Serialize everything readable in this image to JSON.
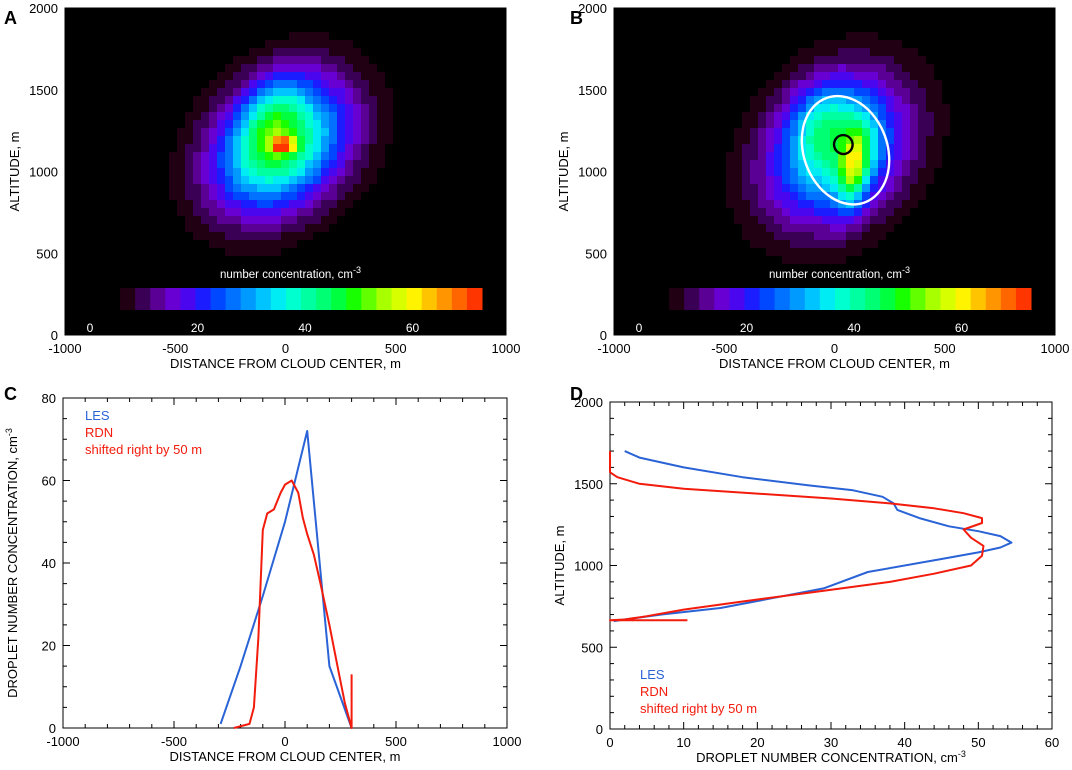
{
  "colors": {
    "les": "#2a63d6",
    "rdn": "#f21b0c",
    "heat_bg": "#000000",
    "contour_outer": "#ffffff",
    "contour_inner": "#000000"
  },
  "colormap": [
    "#000000",
    "#220014",
    "#3a0055",
    "#5a0094",
    "#6800d4",
    "#4a06ee",
    "#1b1cff",
    "#0048ff",
    "#0072ff",
    "#009aff",
    "#00c4ff",
    "#00ecf4",
    "#00ffcf",
    "#00ffa0",
    "#00ff73",
    "#00ff3e",
    "#18ff00",
    "#62ff00",
    "#a8ff00",
    "#d8ff00",
    "#fff300",
    "#ffc400",
    "#ff9500",
    "#ff6600",
    "#ff3500"
  ],
  "chart_data": [
    {
      "panel": "A",
      "type": "heatmap",
      "xlabel": "DISTANCE FROM CLOUD CENTER, m",
      "ylabel": "ALTITUDE, m",
      "xlim": [
        -1000,
        1000
      ],
      "ylim": [
        0,
        2000
      ],
      "xticks": [
        -1000,
        -500,
        0,
        500,
        1000
      ],
      "yticks": [
        0,
        500,
        1000,
        1500,
        2000
      ],
      "colorbar": {
        "title": "number concentration, cm",
        "title_sup": "-3",
        "ticks": [
          0,
          20,
          40,
          60
        ],
        "range": [
          0,
          72
        ]
      },
      "field": {
        "background": 0,
        "blobs": [
          {
            "cx": -20,
            "cy": 1160,
            "sx": 200,
            "sy": 300,
            "rot": -22,
            "peak": 44
          },
          {
            "cx": -60,
            "cy": 1330,
            "sx": 90,
            "sy": 190,
            "rot": -10,
            "peak": 12
          },
          {
            "cx": -10,
            "cy": 1160,
            "sx": 34,
            "sy": 30,
            "rot": 0,
            "peak": 34
          }
        ]
      }
    },
    {
      "panel": "B",
      "type": "heatmap",
      "xlabel": "DISTANCE FROM CLOUD CENTER, m",
      "ylabel": "ALTITUDE, m",
      "xlim": [
        -1000,
        1000
      ],
      "ylim": [
        0,
        2000
      ],
      "xticks": [
        -1000,
        -500,
        0,
        500,
        1000
      ],
      "yticks": [
        0,
        500,
        1000,
        1500,
        2000
      ],
      "colorbar": {
        "title": "number concentration, cm",
        "title_sup": "-3",
        "ticks": [
          0,
          20,
          40,
          60
        ],
        "range": [
          0,
          72
        ]
      },
      "field": {
        "background": 0,
        "blobs": [
          {
            "cx": 10,
            "cy": 1130,
            "sx": 210,
            "sy": 320,
            "rot": -18,
            "peak": 36
          },
          {
            "cx": -50,
            "cy": 1320,
            "sx": 100,
            "sy": 180,
            "rot": -10,
            "peak": 12
          },
          {
            "cx": 90,
            "cy": 1030,
            "sx": 48,
            "sy": 170,
            "rot": -6,
            "peak": 28
          }
        ]
      },
      "contours": [
        {
          "name": "outer",
          "cx": 50,
          "cy": 1130,
          "rx": 190,
          "ry": 340,
          "rot": -20
        },
        {
          "name": "inner",
          "cx": 40,
          "cy": 1165,
          "rx": 42,
          "ry": 58,
          "rot": -15
        }
      ]
    },
    {
      "panel": "C",
      "type": "line",
      "xlabel": "DISTANCE FROM CLOUD CENTER, m",
      "ylabel": "DROPLET NUMBER CONCENTRATION, cm",
      "ylabel_sup": "-3",
      "xlim": [
        -1000,
        1000
      ],
      "ylim": [
        0,
        80
      ],
      "xticks": [
        -1000,
        -500,
        0,
        500,
        1000
      ],
      "yticks": [
        0,
        20,
        40,
        60,
        80
      ],
      "legend": [
        "LES",
        "RDN",
        "shifted right by 50 m"
      ],
      "series": [
        {
          "name": "LES",
          "color_key": "les",
          "x": [
            -290,
            -200,
            -100,
            0,
            100,
            200,
            300
          ],
          "y": [
            1,
            15,
            32,
            50,
            72,
            15,
            0
          ]
        },
        {
          "name": "RDN",
          "color_key": "rdn",
          "x": [
            -230,
            -160,
            -140,
            -120,
            -100,
            -80,
            -50,
            -20,
            0,
            30,
            60,
            80,
            100,
            130,
            160,
            200,
            240,
            270,
            290,
            300,
            300
          ],
          "y": [
            0,
            1,
            5,
            22,
            48,
            52,
            53,
            57,
            59,
            60,
            57,
            51,
            47,
            42,
            35,
            25,
            14,
            6,
            2,
            0,
            13
          ]
        }
      ]
    },
    {
      "panel": "D",
      "type": "line",
      "xlabel": "DROPLET NUMBER CONCENTRATION, cm",
      "xlabel_sup": "-3",
      "ylabel": "ALTITUDE, m",
      "xlim": [
        0,
        60
      ],
      "ylim": [
        0,
        2000
      ],
      "xticks": [
        0,
        10,
        20,
        30,
        40,
        50,
        60
      ],
      "yticks": [
        0,
        500,
        1000,
        1500,
        2000
      ],
      "legend": [
        "LES",
        "RDN",
        "shifted right by 50 m"
      ],
      "series": [
        {
          "name": "LES",
          "color_key": "les",
          "x": [
            2,
            4,
            10,
            18,
            27,
            33,
            37,
            38.5,
            39,
            42,
            46,
            50,
            53,
            54.5,
            53,
            50,
            45,
            35,
            29,
            22,
            15,
            7,
            2,
            0.5
          ],
          "y": [
            1700,
            1660,
            1600,
            1540,
            1490,
            1460,
            1420,
            1380,
            1340,
            1290,
            1240,
            1210,
            1180,
            1140,
            1110,
            1080,
            1040,
            960,
            860,
            800,
            740,
            700,
            670,
            660
          ]
        },
        {
          "name": "RDN",
          "color_key": "rdn",
          "x": [
            0,
            0,
            1,
            4,
            10,
            20,
            30,
            38,
            44,
            48,
            50.5,
            50.5,
            48,
            49,
            50.7,
            50.5,
            49,
            44,
            38,
            28,
            18,
            10,
            5,
            2,
            0,
            10.5
          ],
          "y": [
            1700,
            1570,
            1540,
            1500,
            1470,
            1440,
            1410,
            1380,
            1350,
            1320,
            1290,
            1260,
            1220,
            1170,
            1120,
            1060,
            1000,
            950,
            900,
            840,
            780,
            730,
            690,
            670,
            665,
            665
          ]
        }
      ]
    }
  ]
}
